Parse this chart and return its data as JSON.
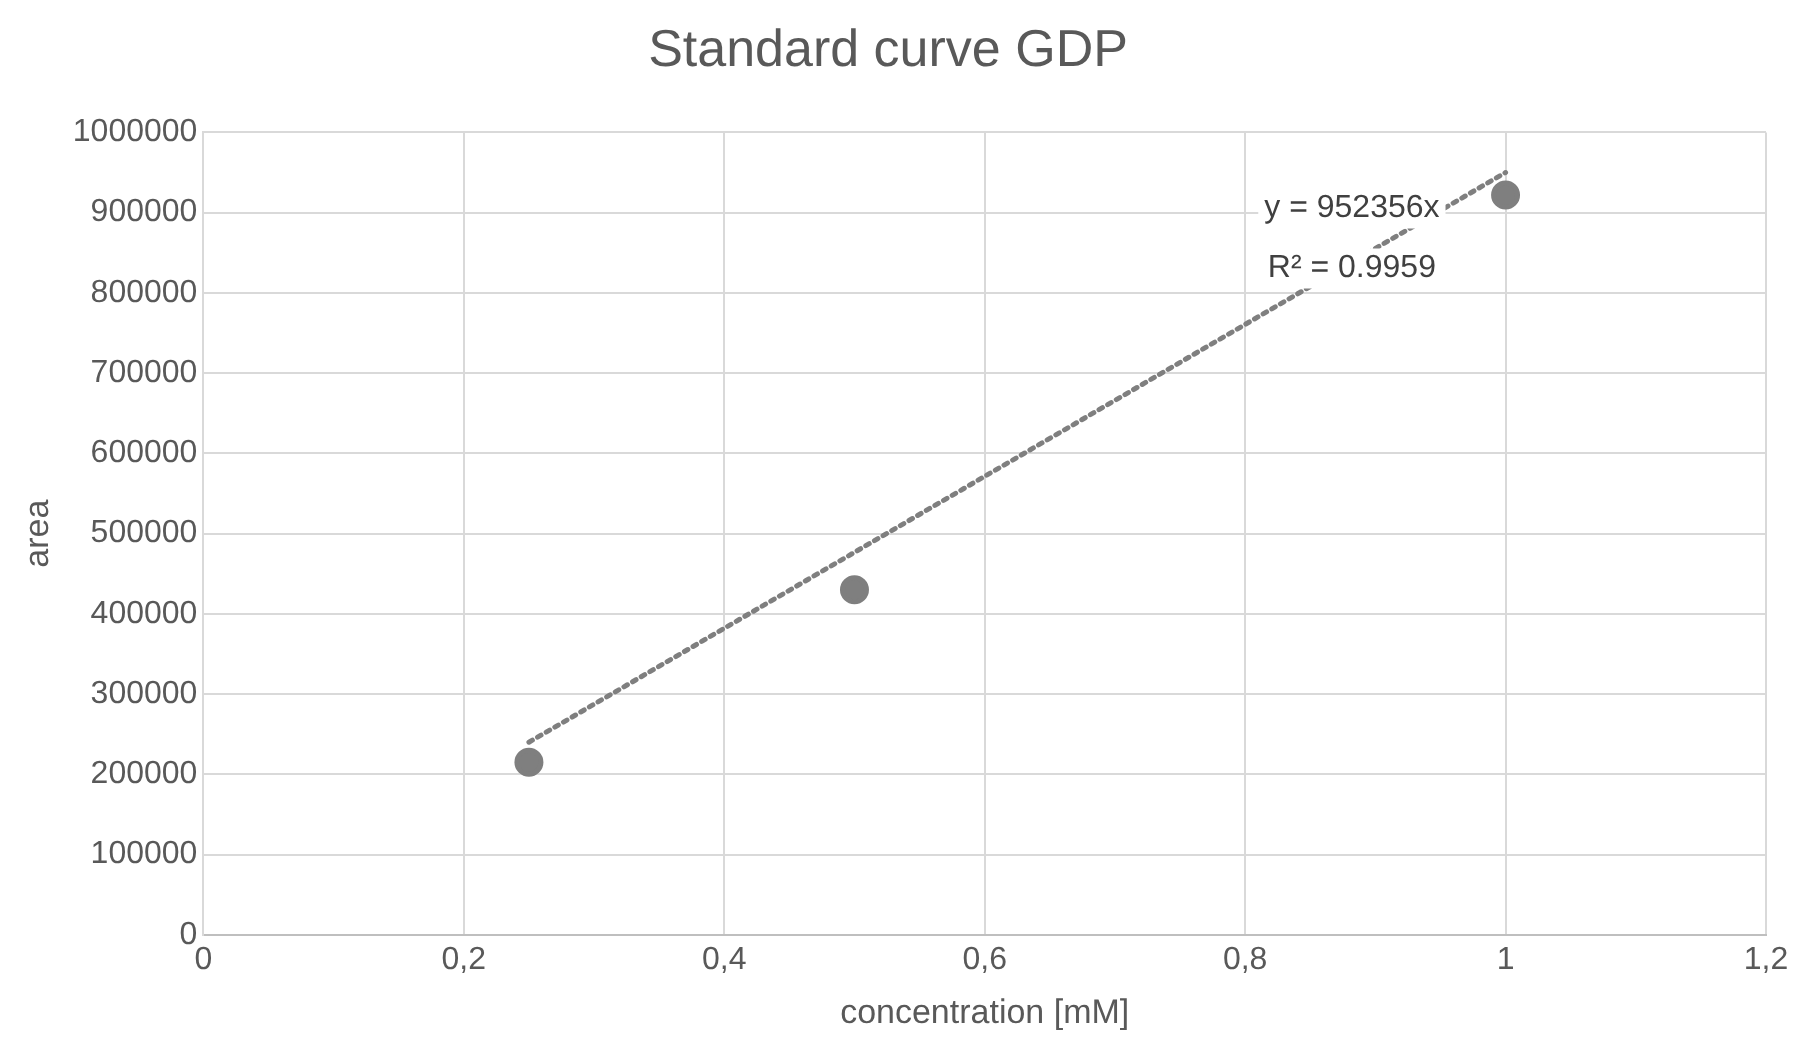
{
  "chart_data": {
    "type": "scatter",
    "title": "Standard curve GDP",
    "xlabel": "concentration [mM]",
    "ylabel": "area",
    "series": [
      {
        "type": "scatter",
        "color": "#7f7f7f",
        "x": [
          0.25,
          0.5,
          1
        ],
        "values": [
          215000,
          430000,
          922000
        ],
        "marker": "circle"
      },
      {
        "type": "line",
        "color": "#7f7f7f",
        "x": [
          0.25,
          1
        ],
        "values": [
          240000,
          950000
        ],
        "marker": "none",
        "line_style": "dotted"
      }
    ],
    "xlim": [
      0,
      1.2
    ],
    "xticks": [
      0,
      {
        "value": 0.2,
        "label": "0,2"
      },
      {
        "value": 0.4,
        "label": "0,4"
      },
      {
        "value": 0.6,
        "label": "0,6"
      },
      {
        "value": 0.8,
        "label": "0,8"
      },
      1,
      {
        "value": 1.2,
        "label": "1,2"
      }
    ],
    "ylim": [
      0,
      1000000
    ],
    "yticks": [
      0,
      100000,
      200000,
      300000,
      400000,
      500000,
      600000,
      700000,
      800000,
      900000,
      1000000
    ],
    "grid": true,
    "legend": false,
    "annotations": [
      "y = 952356x",
      "R² = 0.9959"
    ]
  }
}
